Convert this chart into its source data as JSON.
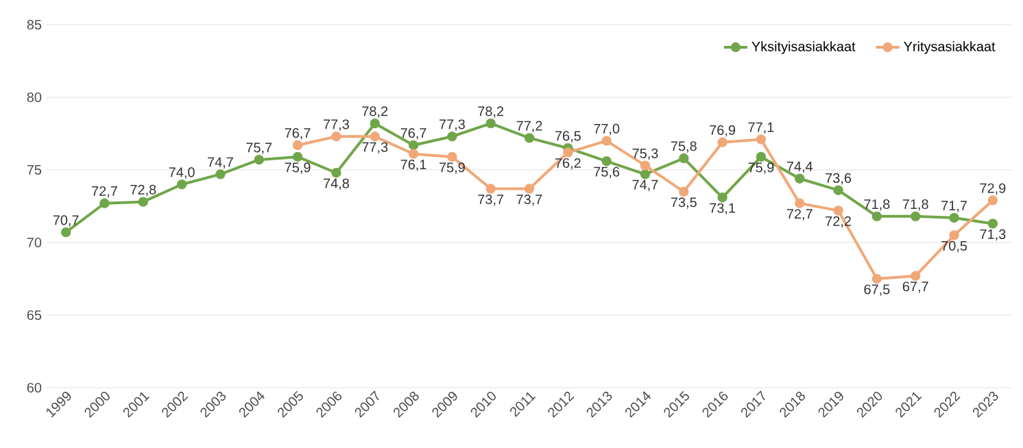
{
  "chart_data": {
    "type": "line",
    "categories": [
      "1999",
      "2000",
      "2001",
      "2002",
      "2003",
      "2004",
      "2005",
      "2006",
      "2007",
      "2008",
      "2009",
      "2010",
      "2011",
      "2012",
      "2013",
      "2014",
      "2015",
      "2016",
      "2017",
      "2018",
      "2019",
      "2020",
      "2021",
      "2022",
      "2023"
    ],
    "series": [
      {
        "name": "Yksityisasiakkaat",
        "color": "#70a64a",
        "values": [
          70.7,
          72.7,
          72.8,
          74.0,
          74.7,
          75.7,
          75.9,
          74.8,
          78.2,
          76.7,
          77.3,
          78.2,
          77.2,
          76.5,
          75.6,
          74.7,
          75.8,
          73.1,
          75.9,
          74.4,
          73.6,
          71.8,
          71.8,
          71.7,
          71.3
        ],
        "value_labels": [
          "70,7",
          "72,7",
          "72,8",
          "74,0",
          "74,7",
          "75,7",
          "75,9",
          "74,8",
          "78,2",
          "76,7",
          "77,3",
          "78,2",
          "77,2",
          "76,5",
          "75,6",
          "74,7",
          "75,8",
          "73,1",
          "75,9",
          "74,4",
          "73,6",
          "71,8",
          "71,8",
          "71,7",
          "71,3"
        ]
      },
      {
        "name": "Yritysasiakkaat",
        "color": "#f0a878",
        "values": [
          null,
          null,
          null,
          null,
          null,
          null,
          76.7,
          77.3,
          77.3,
          76.1,
          75.9,
          73.7,
          73.7,
          76.2,
          77.0,
          75.3,
          73.5,
          76.9,
          77.1,
          72.7,
          72.2,
          67.5,
          67.7,
          70.5,
          72.9
        ],
        "value_labels": [
          null,
          null,
          null,
          null,
          null,
          null,
          "76,7",
          "77,3",
          "77,3",
          "76,1",
          "75,9",
          "73,7",
          "73,7",
          "76,2",
          "77,0",
          "75,3",
          "73,5",
          "76,9",
          "77,1",
          "72,7",
          "72,2",
          "67,5",
          "67,7",
          "70,5",
          "72,9"
        ]
      }
    ],
    "ylim": [
      60,
      85
    ],
    "yticks": [
      60,
      65,
      70,
      75,
      80,
      85
    ],
    "grid": "y",
    "legend": "top right",
    "marker": "circle",
    "line_style": "solid"
  }
}
